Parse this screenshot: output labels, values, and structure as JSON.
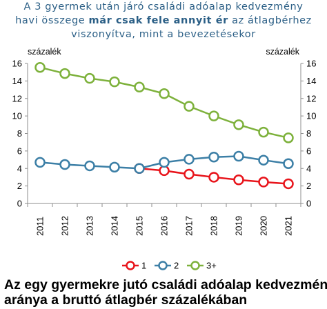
{
  "header": {
    "line1": "A 3 gyermek után járó családi adóalap kedvezmény",
    "line2_pre": "havi összege ",
    "line2_bold": "már csak fele annyit ér",
    "line2_post": " az átlagbérhez",
    "line3": "viszonyítva, mint a bevezetésekor"
  },
  "footer": {
    "line1": "Az egy gyermekre jutó családi adóalap kedvezmény",
    "line2": "aránya a bruttó átlagbér százalékában"
  },
  "chart_data": {
    "type": "line",
    "y_label_left": "százalék",
    "y_label_right": "százalék",
    "ylim": [
      0,
      16
    ],
    "yticks": [
      "0",
      "2",
      "4",
      "6",
      "8",
      "10",
      "12",
      "14",
      "16"
    ],
    "categories": [
      "2011",
      "2012",
      "2013",
      "2014",
      "2015",
      "2016",
      "2017",
      "2018",
      "2019",
      "2020",
      "2021"
    ],
    "grid": false,
    "legend_position": "bottom",
    "series": [
      {
        "name": "1",
        "color": "#e8141b",
        "values": [
          null,
          null,
          null,
          null,
          4.0,
          3.75,
          3.35,
          3.0,
          2.7,
          2.45,
          2.25
        ]
      },
      {
        "name": "2",
        "color": "#3c7fa6",
        "values": [
          4.7,
          4.45,
          4.3,
          4.15,
          4.0,
          4.7,
          5.05,
          5.3,
          5.4,
          4.95,
          4.55
        ]
      },
      {
        "name": "3+",
        "color": "#7db13b",
        "values": [
          15.55,
          14.85,
          14.3,
          13.9,
          13.3,
          12.55,
          11.1,
          10.0,
          9.0,
          8.15,
          7.5
        ]
      }
    ]
  }
}
